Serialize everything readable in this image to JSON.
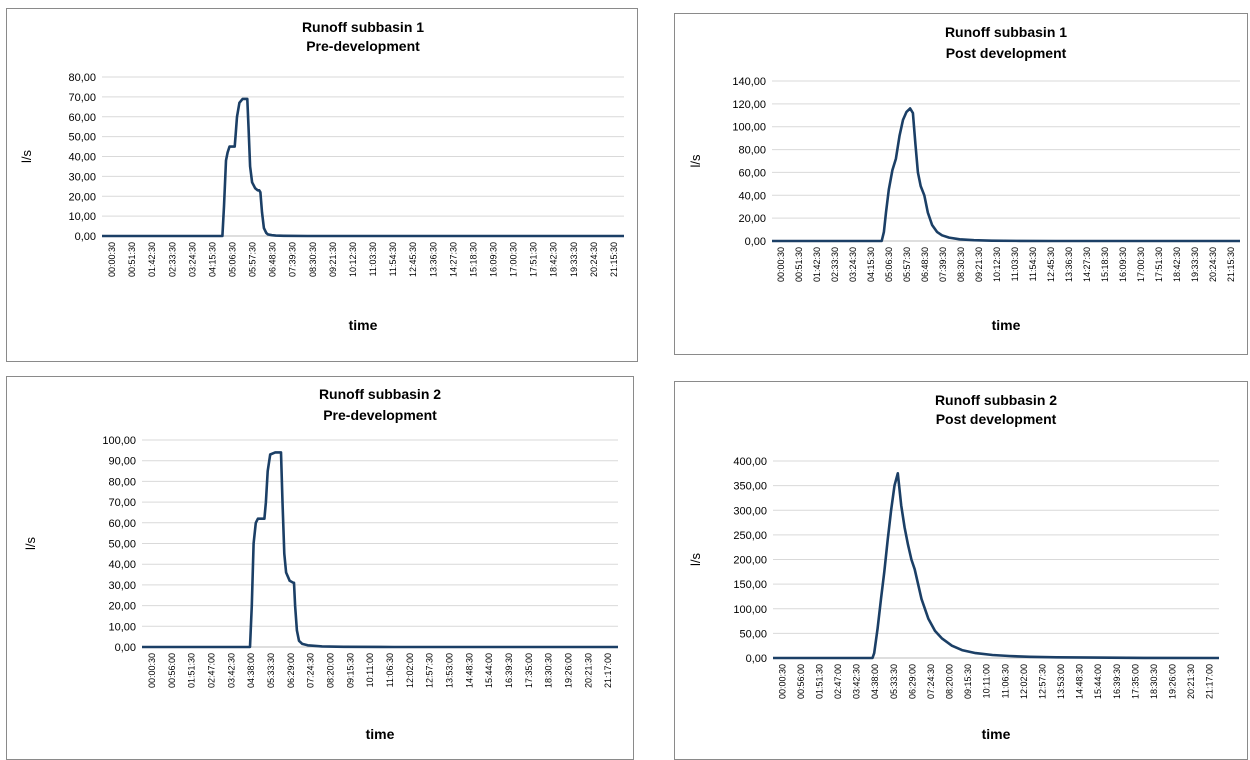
{
  "chart_data": [
    {
      "type": "line",
      "title": "Runoff subbasin 1",
      "subtitle": "Pre-development",
      "xlabel": "time",
      "ylabel": "l/s",
      "ylim": [
        0,
        80
      ],
      "yticks": [
        "0,00",
        "10,00",
        "20,00",
        "30,00",
        "40,00",
        "50,00",
        "60,00",
        "70,00",
        "80,00"
      ],
      "xlim": [
        0.5,
        1320.5
      ],
      "xticks": [
        "00:00:30",
        "00:51:30",
        "01:42:30",
        "02:33:30",
        "03:24:30",
        "04:15:30",
        "05:06:30",
        "05:57:30",
        "06:48:30",
        "07:39:30",
        "08:30:30",
        "09:21:30",
        "10:12:30",
        "11:03:30",
        "11:54:30",
        "12:45:30",
        "13:36:30",
        "14:27:30",
        "15:18:30",
        "16:09:30",
        "17:00:30",
        "17:51:30",
        "18:42:30",
        "19:33:30",
        "20:24:30",
        "21:15:30"
      ],
      "grid": true,
      "legend": "none",
      "line_color": "#1b3f66",
      "series": [
        {
          "x": [
            0.5,
            305,
            309,
            314,
            318,
            323,
            330,
            336,
            338,
            342,
            348,
            356,
            362,
            368,
            371,
            375,
            380,
            388,
            394,
            398,
            401,
            405,
            410,
            416,
            420,
            430,
            440,
            460,
            520,
            600,
            800,
            1000,
            1320.5
          ],
          "values": [
            0,
            0,
            15,
            38,
            42,
            45,
            45,
            45,
            50,
            60,
            67,
            69,
            69,
            69,
            55,
            35,
            27,
            24,
            23,
            23,
            22,
            12,
            4,
            1.5,
            0.8,
            0.4,
            0.2,
            0.1,
            0,
            0,
            0,
            0,
            0
          ]
        }
      ]
    },
    {
      "type": "line",
      "title": "Runoff subbasin 1",
      "subtitle": "Post development",
      "xlabel": "time",
      "ylabel": "l/s",
      "ylim": [
        0,
        140
      ],
      "yticks": [
        "0,00",
        "20,00",
        "40,00",
        "60,00",
        "80,00",
        "100,00",
        "120,00",
        "140,00"
      ],
      "xlim": [
        0.5,
        1320.5
      ],
      "xticks": [
        "00:00:30",
        "00:51:30",
        "01:42:30",
        "02:33:30",
        "03:24:30",
        "04:15:30",
        "05:06:30",
        "05:57:30",
        "06:48:30",
        "07:39:30",
        "08:30:30",
        "09:21:30",
        "10:12:30",
        "11:03:30",
        "11:54:30",
        "12:45:30",
        "13:36:30",
        "14:27:30",
        "15:18:30",
        "16:09:30",
        "17:00:30",
        "17:51:30",
        "18:42:30",
        "19:33:30",
        "20:24:30",
        "21:15:30"
      ],
      "grid": true,
      "legend": "none",
      "line_color": "#1b3f66",
      "series": [
        {
          "x": [
            0.5,
            310,
            316,
            322,
            330,
            340,
            350,
            360,
            370,
            380,
            390,
            398,
            405,
            412,
            420,
            430,
            440,
            452,
            466,
            480,
            500,
            530,
            570,
            620,
            700,
            800,
            900,
            1000,
            1320.5
          ],
          "values": [
            0,
            0,
            8,
            25,
            45,
            62,
            72,
            92,
            106,
            113,
            116,
            112,
            85,
            60,
            48,
            40,
            25,
            14,
            8,
            5,
            3,
            1.5,
            0.7,
            0.3,
            0.1,
            0,
            0,
            0,
            0
          ]
        }
      ]
    },
    {
      "type": "line",
      "title": "Runoff subbasin 2",
      "subtitle": "Pre-development",
      "xlabel": "time",
      "ylabel": "l/s",
      "ylim": [
        0,
        100
      ],
      "yticks": [
        "0,00",
        "10,00",
        "20,00",
        "30,00",
        "40,00",
        "50,00",
        "60,00",
        "70,00",
        "80,00",
        "90,00",
        "100,00"
      ],
      "xlim": [
        0.5,
        1320.5
      ],
      "xticks": [
        "00:00:30",
        "00:56:00",
        "01:51:30",
        "02:47:00",
        "03:42:30",
        "04:38:00",
        "05:33:30",
        "06:29:00",
        "07:24:30",
        "08:20:00",
        "09:15:30",
        "10:11:00",
        "11:06:30",
        "12:02:00",
        "12:57:30",
        "13:53:00",
        "14:48:30",
        "15:44:00",
        "16:39:30",
        "17:35:00",
        "18:30:30",
        "19:26:00",
        "20:21:30",
        "21:17:00"
      ],
      "grid": true,
      "legend": "none",
      "line_color": "#1b3f66",
      "series": [
        {
          "x": [
            0.5,
            300,
            305,
            310,
            316,
            322,
            333,
            340,
            344,
            349,
            356,
            370,
            378,
            386,
            390,
            395,
            400,
            410,
            420,
            422,
            425,
            430,
            436,
            445,
            460,
            500,
            560,
            700,
            1320.5
          ],
          "values": [
            0,
            0,
            20,
            50,
            60,
            62,
            62,
            62,
            70,
            85,
            93,
            94,
            94,
            94,
            70,
            45,
            36,
            32,
            31,
            31,
            20,
            8,
            3,
            1.5,
            0.8,
            0.3,
            0.1,
            0,
            0
          ]
        }
      ]
    },
    {
      "type": "line",
      "title": "Runoff subbasin 2",
      "subtitle": "Post development",
      "xlabel": "time",
      "ylabel": "l/s",
      "ylim": [
        0,
        400
      ],
      "yticks": [
        "0,00",
        "50,00",
        "100,00",
        "150,00",
        "200,00",
        "250,00",
        "300,00",
        "350,00",
        "400,00"
      ],
      "xlim": [
        0.5,
        1320.5
      ],
      "xticks": [
        "00:00:30",
        "00:56:00",
        "01:51:30",
        "02:47:00",
        "03:42:30",
        "04:38:00",
        "05:33:30",
        "06:29:00",
        "07:24:30",
        "08:20:00",
        "09:15:30",
        "10:11:00",
        "11:06:30",
        "12:02:00",
        "12:57:30",
        "13:53:00",
        "14:48:30",
        "15:44:00",
        "16:39:30",
        "17:35:00",
        "18:30:30",
        "19:26:00",
        "20:21:30",
        "21:17:00"
      ],
      "grid": true,
      "legend": "none",
      "line_color": "#1b3f66",
      "series": [
        {
          "x": [
            0.5,
            295,
            300,
            310,
            320,
            330,
            340,
            350,
            360,
            370,
            380,
            390,
            400,
            410,
            420,
            440,
            460,
            480,
            500,
            530,
            560,
            600,
            650,
            700,
            760,
            840,
            950,
            1100,
            1320.5
          ],
          "values": [
            0,
            0,
            10,
            60,
            120,
            175,
            240,
            300,
            350,
            375,
            310,
            265,
            230,
            200,
            180,
            120,
            80,
            55,
            40,
            25,
            16,
            10,
            6,
            4,
            2.5,
            1.5,
            0.8,
            0.3,
            0
          ]
        }
      ]
    }
  ]
}
